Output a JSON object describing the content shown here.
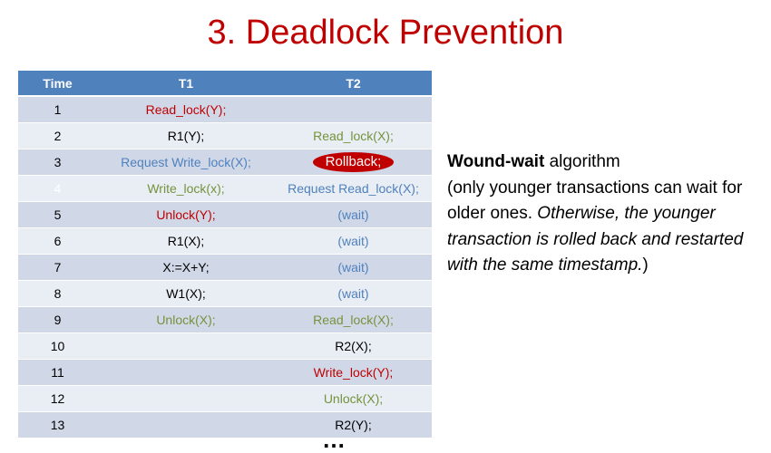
{
  "title": "3. Deadlock Prevention",
  "table": {
    "headers": [
      "Time",
      "T1",
      "T2"
    ],
    "rows": [
      {
        "time": "1",
        "t1": "Read_lock(Y);",
        "t1_color": "red",
        "t2": "",
        "t2_color": ""
      },
      {
        "time": "2",
        "t1": "R1(Y);",
        "t1_color": "black",
        "t2": "Read_lock(X);",
        "t2_color": "green"
      },
      {
        "time": "3",
        "t1": "Request Write_lock(X);",
        "t1_color": "blue",
        "t2": "Rollback;",
        "t2_color": "highlight"
      },
      {
        "time": "4",
        "t1": "Write_lock(x);",
        "t1_color": "green",
        "t2": "Request Read_lock(X);",
        "t2_color": "blue",
        "time_color": "faint"
      },
      {
        "time": "5",
        "t1": "Unlock(Y);",
        "t1_color": "red",
        "t2": "(wait)",
        "t2_color": "blue"
      },
      {
        "time": "6",
        "t1": "R1(X);",
        "t1_color": "black",
        "t2": "(wait)",
        "t2_color": "blue"
      },
      {
        "time": "7",
        "t1": "X:=X+Y;",
        "t1_color": "black",
        "t2": "(wait)",
        "t2_color": "blue"
      },
      {
        "time": "8",
        "t1": "W1(X);",
        "t1_color": "black",
        "t2": "(wait)",
        "t2_color": "blue"
      },
      {
        "time": "9",
        "t1": "Unlock(X);",
        "t1_color": "green",
        "t2": "Read_lock(X);",
        "t2_color": "green"
      },
      {
        "time": "10",
        "t1": "",
        "t1_color": "",
        "t2": "R2(X);",
        "t2_color": "black"
      },
      {
        "time": "11",
        "t1": "",
        "t1_color": "",
        "t2": "Write_lock(Y);",
        "t2_color": "red"
      },
      {
        "time": "12",
        "t1": "",
        "t1_color": "",
        "t2": "Unlock(X);",
        "t2_color": "green"
      },
      {
        "time": "13",
        "t1": "",
        "t1_color": "",
        "t2": "R2(Y);",
        "t2_color": "black"
      }
    ]
  },
  "ellipsis": "…",
  "explanation": {
    "algo_name": "Wound-wait",
    "algo_suffix": " algorithm",
    "paren_plain": "(only younger transactions can wait for older ones. ",
    "paren_italic": "Otherwise, the younger transaction is rolled back and restarted with the same timestamp.",
    "paren_close": ")"
  },
  "colors": {
    "title": "#c00000",
    "header_bg": "#4f81bd",
    "row_odd": "#d0d8e8",
    "row_even": "#e9edf4",
    "red": "#c00000",
    "green": "#76923c",
    "blue": "#4f81bd",
    "rollback_bg": "#c00000"
  }
}
